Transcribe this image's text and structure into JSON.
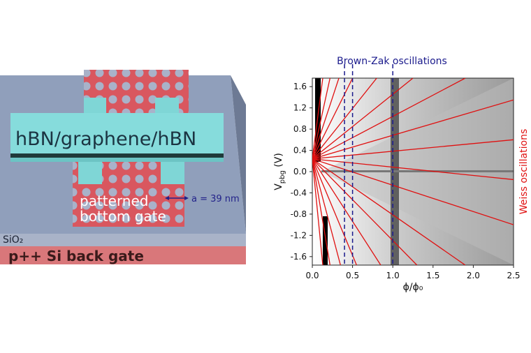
{
  "diagram": {
    "stack_label": "hBN/graphene/hBN",
    "period_label": "a = 39 nm",
    "gate_label_1": "patterned",
    "gate_label_2": "bottom gate",
    "oxide_label": "SiO₂",
    "back_gate_label": "p++ Si back gate"
  },
  "chart_data": {
    "type": "line",
    "annotations": {
      "top": "Brown-Zak oscillations",
      "right": "Weiss oscillations"
    },
    "xlabel": "ϕ/ϕ₀",
    "ylabel": {
      "main": "V",
      "sub": "pbg",
      "unit": " (V)"
    },
    "xlim": [
      0,
      2.5
    ],
    "xticks": [
      {
        "value": 0,
        "label": "0.0"
      },
      0.5,
      {
        "value": 1,
        "label": "1.0"
      },
      1.5,
      {
        "value": 2,
        "label": "2.0"
      },
      2.5
    ],
    "ylim": [
      -1.76,
      1.76
    ],
    "yticks": [
      1.6,
      1.2,
      0.8,
      0.4,
      {
        "value": 0,
        "label": "0.0"
      },
      -0.4,
      -0.8,
      -1.2,
      -1.6
    ],
    "brown_zak_x": [
      0.4,
      0.5,
      1.0
    ],
    "brown_zak_color": "#1a1a8c",
    "weiss_color": "#e01010",
    "weiss_lines": [
      {
        "x": [
          0,
          0.13
        ],
        "y": [
          0.24,
          1.76
        ]
      },
      {
        "x": [
          0,
          0.22
        ],
        "y": [
          0.24,
          1.76
        ]
      },
      {
        "x": [
          0,
          0.33
        ],
        "y": [
          0.24,
          1.76
        ]
      },
      {
        "x": [
          0,
          0.5
        ],
        "y": [
          0.24,
          1.76
        ]
      },
      {
        "x": [
          0,
          0.8
        ],
        "y": [
          0.24,
          1.76
        ]
      },
      {
        "x": [
          0,
          1.25
        ],
        "y": [
          0.24,
          1.76
        ]
      },
      {
        "x": [
          0,
          1.9
        ],
        "y": [
          0.24,
          1.76
        ]
      },
      {
        "x": [
          0,
          2.5
        ],
        "y": [
          0.24,
          1.35
        ]
      },
      {
        "x": [
          0,
          2.5
        ],
        "y": [
          0.24,
          0.6
        ]
      },
      {
        "x": [
          0,
          0.13
        ],
        "y": [
          0.24,
          -1.76
        ]
      },
      {
        "x": [
          0,
          0.22
        ],
        "y": [
          0.24,
          -1.76
        ]
      },
      {
        "x": [
          0,
          0.35
        ],
        "y": [
          0.24,
          -1.76
        ]
      },
      {
        "x": [
          0,
          0.55
        ],
        "y": [
          0.24,
          -1.76
        ]
      },
      {
        "x": [
          0,
          0.85
        ],
        "y": [
          0.24,
          -1.76
        ]
      },
      {
        "x": [
          0,
          1.3
        ],
        "y": [
          0.24,
          -1.76
        ]
      },
      {
        "x": [
          0,
          1.9
        ],
        "y": [
          0.24,
          -1.76
        ]
      },
      {
        "x": [
          0,
          2.5
        ],
        "y": [
          0.24,
          -1.0
        ]
      },
      {
        "x": [
          0,
          2.5
        ],
        "y": [
          0.24,
          -0.15
        ]
      }
    ]
  }
}
